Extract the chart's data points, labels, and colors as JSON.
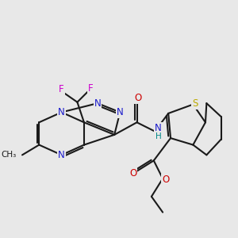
{
  "bg_color": "#e8e8e8",
  "bond_color": "#1a1a1a",
  "bond_width": 1.5,
  "atom_colors": {
    "N": "#1a1acc",
    "F": "#cc00cc",
    "O": "#cc0000",
    "S": "#bbaa00",
    "H": "#008888",
    "default": "#1a1a1a"
  },
  "font_size": 8.5,
  "fig_size": [
    3.0,
    3.0
  ],
  "dpi": 100,
  "xlim": [
    0,
    10
  ],
  "ylim": [
    0,
    10
  ]
}
